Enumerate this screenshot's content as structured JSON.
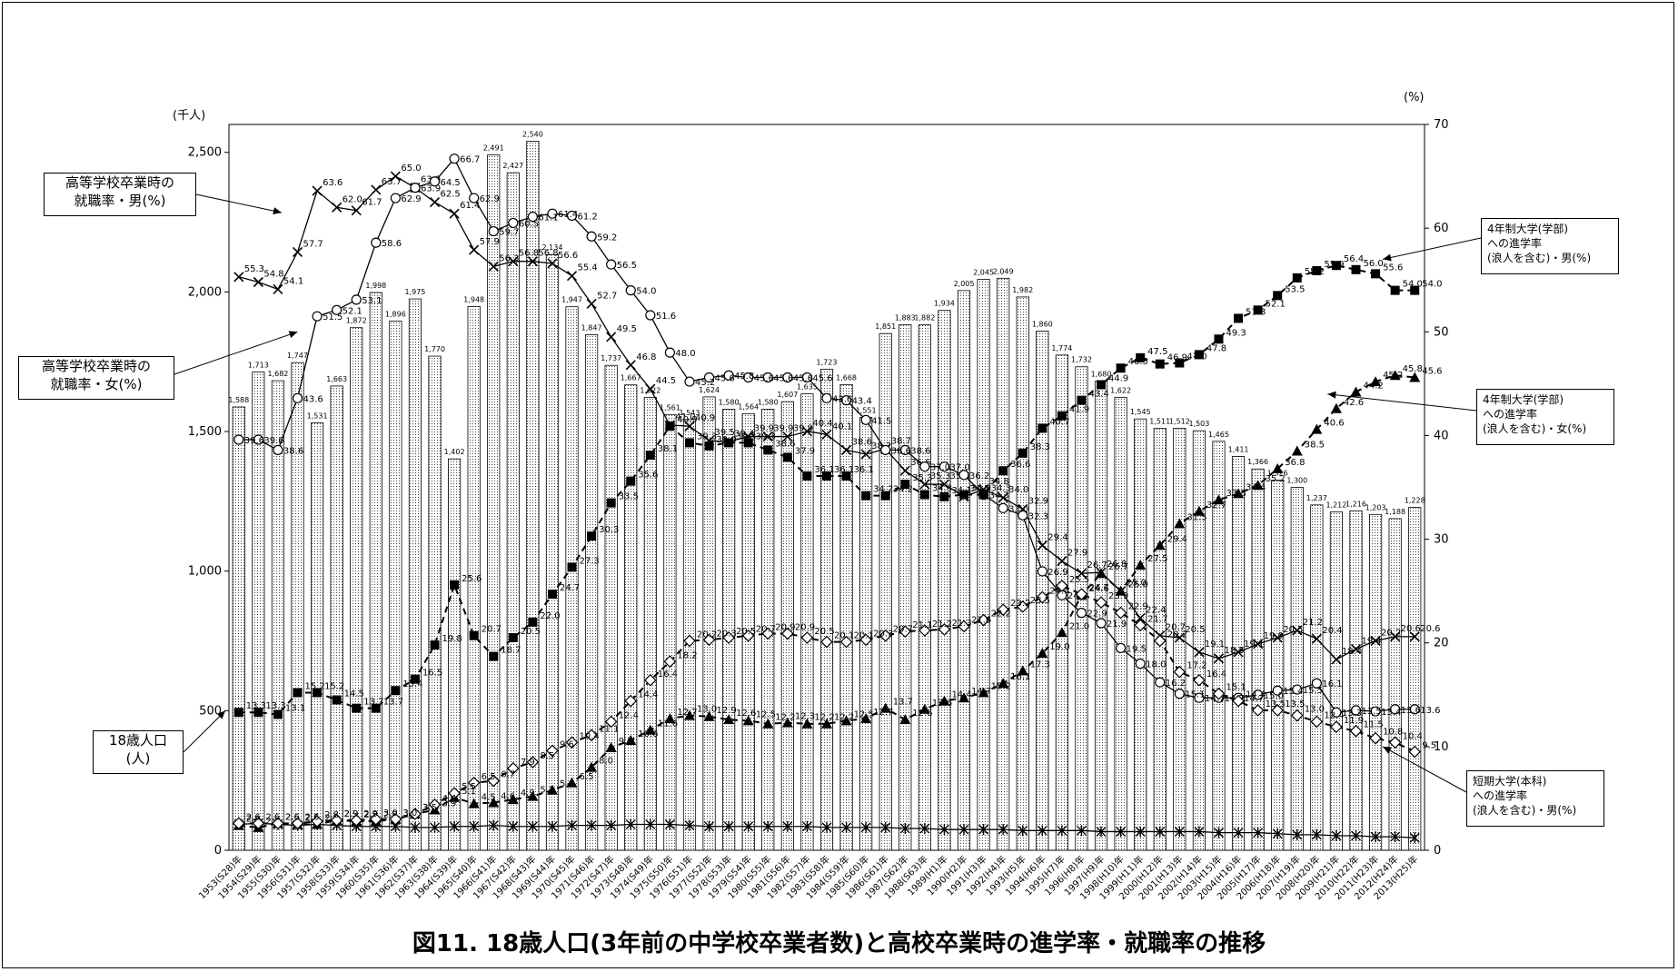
{
  "figure_title": "図11. 18歳人口(3年前の中学校卒業者数)と高校卒業時の進学率・就職率の推移",
  "chart_data": {
    "type": "bar",
    "title": "図11. 18歳人口(3年前の中学校卒業者数)と高校卒業時の進学率・就職率の推移",
    "left_axis": {
      "unit": "(千人)",
      "ylim": [
        0,
        2600
      ],
      "ticks": [
        "0",
        "500",
        "1,000",
        "1,500",
        "2,000",
        "2,500"
      ],
      "tick_values": [
        0,
        500,
        1000,
        1500,
        2000,
        2500
      ]
    },
    "right_axis": {
      "unit": "(%)",
      "ylim": [
        0,
        70
      ],
      "ticks": [
        "0",
        "10",
        "20",
        "30",
        "40",
        "50",
        "60",
        "70"
      ],
      "tick_values": [
        0,
        10,
        20,
        30,
        40,
        50,
        60,
        70
      ]
    },
    "categories": [
      "1953(S28)年",
      "1954(S29)年",
      "1955(S30)年",
      "1956(S31)年",
      "1957(S32)年",
      "1958(S33)年",
      "1959(S34)年",
      "1960(S35)年",
      "1961(S36)年",
      "1962(S37)年",
      "1963(S38)年",
      "1964(S39)年",
      "1965(S40)年",
      "1966(S41)年",
      "1967(S42)年",
      "1968(S43)年",
      "1969(S44)年",
      "1970(S45)年",
      "1971(S46)年",
      "1972(S47)年",
      "1973(S48)年",
      "1974(S49)年",
      "1975(S50)年",
      "1976(S51)年",
      "1977(S52)年",
      "1978(S53)年",
      "1979(S54)年",
      "1980(S55)年",
      "1981(S56)年",
      "1982(S57)年",
      "1983(S58)年",
      "1984(S59)年",
      "1985(S60)年",
      "1986(S61)年",
      "1987(S62)年",
      "1988(S63)年",
      "1989(H1)年",
      "1990(H2)年",
      "1991(H3)年",
      "1992(H4)年",
      "1993(H5)年",
      "1994(H6)年",
      "1995(H7)年",
      "1996(H8)年",
      "1997(H9)年",
      "1998(H10)年",
      "1999(H11)年",
      "2000(H12)年",
      "2001(H13)年",
      "2002(H14)年",
      "2003(H15)年",
      "2004(H16)年",
      "2005(H17)年",
      "2006(H18)年",
      "2007(H19)年",
      "2008(H20)年",
      "2009(H21)年",
      "2010(H22)年",
      "2011(H23)年",
      "2012(H24)年",
      "2013(H25)年"
    ],
    "population": {
      "name": "18歳人口(人)",
      "values": [
        1588,
        1713,
        1682,
        1747,
        1531,
        1663,
        1872,
        1998,
        1896,
        1975,
        1770,
        1402,
        1948,
        2491,
        2427,
        2540,
        2134,
        1947,
        1847,
        1737,
        1667,
        1622,
        1561,
        1543,
        1624,
        1580,
        1564,
        1580,
        1607,
        1635,
        1723,
        1668,
        1551,
        1851,
        1883,
        1882,
        1934,
        2005,
        2045,
        2049,
        1982,
        1860,
        1774,
        1732,
        1680,
        1622,
        1545,
        1511,
        1512,
        1503,
        1465,
        1411,
        1366,
        1326,
        1300,
        1237,
        1212,
        1216,
        1203,
        1188,
        1228
      ],
      "labels": [
        "1,588",
        "1,713",
        "1,682",
        "1,747",
        "1,531",
        "1,663",
        "1,872",
        "1,998",
        "1,896",
        "1,975",
        "1,770",
        "1,402",
        "1,948",
        "2,491",
        "2,427",
        "2,540",
        "2,134",
        "1,947",
        "1,847",
        "1,737",
        "1,667",
        "1,622",
        "1,561",
        "1,543",
        "1,624",
        "1,580",
        "1,564",
        "1,580",
        "1,607",
        "1,635",
        "1,723",
        "1,668",
        "1,551",
        "1,851",
        "1,883",
        "1,882",
        "1,934",
        "2,005",
        "2,045",
        "2,049",
        "1,982",
        "1,860",
        "1,774",
        "1,732",
        "1,680",
        "1,622",
        "1,545",
        "1,511",
        "1,512",
        "1,503",
        "1,465",
        "1,411",
        "1,366",
        "1,326",
        "1,300",
        "1,237",
        "1,212",
        "1,216",
        "1,203",
        "1,188",
        "1,228"
      ]
    },
    "series": [
      {
        "name": "高等学校卒業時の就職率・男(%)",
        "marker": "x",
        "dash": false,
        "values": [
          55.3,
          54.8,
          54.1,
          57.7,
          63.6,
          62.0,
          61.7,
          63.7,
          65.0,
          63.9,
          62.5,
          61.4,
          57.9,
          56.3,
          56.8,
          56.8,
          56.6,
          55.4,
          52.7,
          49.5,
          46.8,
          44.5,
          41.0,
          40.9,
          39.5,
          39.4,
          39.9,
          39.9,
          39.9,
          40.4,
          40.1,
          38.6,
          38.2,
          38.7,
          36.6,
          35.3,
          35.3,
          34.1,
          34.8,
          34.0,
          32.9,
          29.4,
          27.9,
          26.7,
          26.8,
          25.0,
          22.4,
          20.7,
          20.5,
          19.1,
          18.5,
          19.1,
          19.9,
          20.5,
          21.2,
          20.4,
          18.4,
          19.4,
          20.2,
          20.6,
          20.6
        ]
      },
      {
        "name": "高等学校卒業時の就職率・女(%)",
        "marker": "circle",
        "dash": false,
        "values": [
          39.6,
          39.6,
          38.6,
          43.6,
          51.5,
          52.1,
          53.1,
          58.6,
          62.9,
          63.9,
          64.5,
          66.7,
          62.9,
          59.7,
          60.5,
          61.1,
          61.4,
          61.2,
          59.2,
          56.5,
          54.0,
          51.6,
          48.0,
          45.2,
          45.6,
          45.8,
          45.6,
          45.6,
          45.6,
          45.6,
          43.6,
          43.4,
          41.5,
          38.6,
          38.6,
          37.0,
          37.0,
          36.2,
          34.3,
          33.0,
          32.3,
          26.9,
          24.6,
          22.9,
          21.9,
          19.5,
          18.0,
          16.2,
          15.1,
          14.7,
          14.7,
          14.7,
          15.0,
          15.4,
          15.5,
          16.1,
          13.3,
          13.5,
          13.4,
          13.6,
          13.6
        ]
      },
      {
        "name": "4年制大学(学部)への進学率(浪人を含む)・男(%)",
        "marker": "square",
        "dash": true,
        "values": [
          13.3,
          13.3,
          13.1,
          15.2,
          15.2,
          14.5,
          13.7,
          13.7,
          15.4,
          16.5,
          19.8,
          25.6,
          20.7,
          18.7,
          20.5,
          22.0,
          24.7,
          27.3,
          30.3,
          33.5,
          35.6,
          38.1,
          40.9,
          39.3,
          39.0,
          39.3,
          39.3,
          38.6,
          37.9,
          36.1,
          36.1,
          36.1,
          34.2,
          34.2,
          35.3,
          34.3,
          34.1,
          34.3,
          34.3,
          36.6,
          38.3,
          40.7,
          41.9,
          43.4,
          44.9,
          46.5,
          47.5,
          46.9,
          47.0,
          47.8,
          49.3,
          51.3,
          52.1,
          53.5,
          55.2,
          55.9,
          56.4,
          56.0,
          55.6,
          54.0,
          54.0
        ]
      },
      {
        "name": "4年制大学(学部)への進学率(浪人を含む)・女(%)",
        "marker": "triangle",
        "dash": true,
        "values": [
          2.4,
          2.2,
          2.6,
          2.5,
          2.5,
          2.9,
          2.8,
          2.8,
          3.0,
          3.5,
          3.9,
          5.1,
          4.5,
          4.6,
          4.9,
          5.2,
          5.8,
          6.5,
          8.0,
          9.9,
          10.6,
          11.6,
          12.7,
          13.0,
          12.9,
          12.6,
          12.5,
          12.2,
          12.3,
          12.2,
          12.2,
          12.5,
          12.7,
          13.7,
          12.6,
          13.6,
          14.4,
          14.7,
          15.2,
          16.1,
          17.3,
          19.0,
          21.0,
          24.6,
          26.7,
          25.0,
          27.5,
          29.4,
          31.5,
          32.7,
          33.8,
          34.4,
          35.2,
          36.8,
          38.5,
          40.6,
          42.6,
          44.2,
          45.2,
          45.8,
          45.6
        ]
      },
      {
        "name": "短期大学(本科)への進学率(浪人を含む)・男(%)",
        "marker": "asterisk",
        "dash": false,
        "values": [
          2.5,
          2.6,
          2.5,
          2.4,
          2.5,
          2.4,
          2.3,
          2.3,
          2.3,
          2.2,
          2.2,
          2.3,
          2.3,
          2.4,
          2.3,
          2.3,
          2.3,
          2.4,
          2.4,
          2.4,
          2.5,
          2.5,
          2.5,
          2.4,
          2.3,
          2.3,
          2.3,
          2.3,
          2.3,
          2.3,
          2.2,
          2.2,
          2.2,
          2.2,
          2.1,
          2.1,
          2.0,
          2.0,
          2.0,
          2.0,
          1.9,
          1.9,
          1.9,
          1.9,
          1.8,
          1.8,
          1.8,
          1.8,
          1.8,
          1.8,
          1.7,
          1.7,
          1.7,
          1.6,
          1.5,
          1.5,
          1.4,
          1.4,
          1.3,
          1.3,
          1.2
        ]
      },
      {
        "name": "短期大学(本科)への進学率(浪人を含む)・女(%)",
        "marker": "diamond",
        "dash": true,
        "values": [
          2.6,
          2.6,
          2.6,
          2.6,
          2.8,
          2.9,
          2.9,
          3.0,
          3.0,
          3.5,
          4.4,
          5.5,
          6.5,
          6.7,
          7.9,
          8.5,
          9.6,
          10.4,
          11.1,
          12.4,
          14.4,
          16.4,
          18.2,
          20.2,
          20.3,
          20.5,
          20.7,
          20.9,
          20.9,
          20.5,
          20.1,
          20.1,
          20.3,
          20.7,
          21.1,
          21.2,
          21.3,
          21.6,
          22.2,
          23.2,
          23.5,
          24.4,
          25.5,
          24.7,
          23.9,
          22.9,
          21.7,
          20.2,
          17.2,
          16.4,
          15.1,
          14.4,
          13.5,
          13.5,
          13.0,
          12.4,
          11.9,
          11.5,
          10.8,
          10.4,
          9.5
        ]
      }
    ],
    "point_labels": {
      "male_employment": [
        "55.3",
        "54.8",
        "54.1",
        "57.7",
        "63.6",
        "62.0",
        "61.7",
        "63.7",
        "65.0",
        "63.9",
        "62.5",
        "61.4",
        "57.9",
        "56.3",
        "56.8",
        "56.8",
        "56.6",
        "55.4",
        "52.7",
        "49.5",
        "46.8",
        "44.5",
        "41.0",
        "40.9",
        "39.5",
        "39.4",
        "39.9",
        "39.9",
        "39.9",
        "40.4",
        "40.1",
        "38.6",
        "38.2",
        "38.7",
        "36.6",
        "35.3",
        "35.3",
        "34.1",
        "34.8",
        "34.0",
        "32.9",
        "29.4",
        "27.9",
        "26.7",
        "26.8",
        "25.0",
        "22.4",
        "20.7",
        "20.5",
        "19.1",
        "18.5",
        "19.1",
        "19.9",
        "20.5",
        "21.2",
        "20.4",
        "18.4",
        "19.4",
        "20.2",
        "20.6",
        "20.6"
      ],
      "female_employment": [
        "39.6",
        "39.6",
        "38.6",
        "43.6",
        "51.5",
        "52.1",
        "53.1",
        "58.6",
        "62.9",
        "63.9",
        "64.5",
        "66.7",
        "62.9",
        "59.7",
        "60.5",
        "61.1",
        "61.4",
        "61.2",
        "59.2",
        "56.5",
        "54.0",
        "51.6",
        "48.0",
        "45.2",
        "45.6",
        "45.8",
        "45.6",
        "45.6",
        "45.6",
        "45.6",
        "43.6",
        "43.4",
        "41.5",
        "38.6",
        "38.6",
        "37.0",
        "37.0",
        "36.2",
        "34.3",
        "33.0",
        "32.3",
        "26.9",
        "24.6",
        "22.9",
        "21.9",
        "19.5",
        "18.0",
        "16.2",
        "15.1",
        "14.7",
        "14.7",
        "14.7",
        "15.0",
        "15.4",
        "15.5",
        "16.1",
        "13.3",
        "13.5",
        "13.4",
        "13.6",
        "13.6"
      ],
      "male_univ": [
        "13.3",
        "13.3",
        "13.1",
        "15.2",
        "15.2",
        "14.5",
        "13.7",
        "13.7",
        "15.4",
        "16.5",
        "19.8",
        "25.6",
        "20.7",
        "18.7",
        "20.5",
        "22.0",
        "24.7",
        "27.3",
        "30.3",
        "33.5",
        "35.6",
        "38.1",
        "40.9",
        "39.3",
        "39.0",
        "39.3",
        "39.3",
        "38.6",
        "37.9",
        "36.1",
        "36.1",
        "36.1",
        "34.2",
        "34.2",
        "35.3",
        "34.3",
        "34.1",
        "34.3",
        "34.3",
        "36.6",
        "38.3",
        "40.7",
        "41.9",
        "43.4",
        "44.9",
        "46.5",
        "47.5",
        "46.9",
        "47.0",
        "47.8",
        "49.3",
        "51.3",
        "52.1",
        "53.5",
        "55.2",
        "55.9",
        "56.4",
        "56.0",
        "55.6",
        "54.0",
        "54.0"
      ],
      "female_univ": [
        "2.4",
        "2.2",
        "2.6",
        "2.5",
        "2.5",
        "2.9",
        "2.8",
        "2.8",
        "3.0",
        "3.5",
        "3.9",
        "5.1",
        "4.5",
        "4.6",
        "4.9",
        "5.2",
        "5.8",
        "6.5",
        "8.0",
        "9.9",
        "10.6",
        "11.6",
        "12.7",
        "13.0",
        "12.9",
        "12.6",
        "12.5",
        "12.2",
        "12.3",
        "12.2",
        "12.2",
        "12.5",
        "12.7",
        "13.7",
        "12.6",
        "13.6",
        "14.4",
        "14.7",
        "15.2",
        "16.1",
        "17.3",
        "19.0",
        "21.0",
        "24.6",
        "26.7",
        "25.0",
        "27.5",
        "29.4",
        "31.5",
        "32.7",
        "33.8",
        "34.4",
        "35.2",
        "36.8",
        "38.5",
        "40.6",
        "42.6",
        "44.2",
        "45.2",
        "45.8",
        "45.6"
      ],
      "female_jc": [
        "2.6",
        "2.6",
        "2.6",
        "2.6",
        "2.8",
        "2.9",
        "2.9",
        "3.0",
        "3.0",
        "3.5",
        "4.4",
        "5.5",
        "6.5",
        "6.7",
        "7.9",
        "8.5",
        "9.6",
        "10.4",
        "11.1",
        "12.4",
        "14.4",
        "16.4",
        "18.2",
        "20.2",
        "20.3",
        "20.5",
        "20.7",
        "20.9",
        "20.9",
        "20.5",
        "20.1",
        "20.1",
        "20.3",
        "20.7",
        "21.1",
        "21.2",
        "21.3",
        "21.6",
        "22.2",
        "23.2",
        "23.5",
        "24.4",
        "25.5",
        "24.7",
        "23.9",
        "22.9",
        "21.7",
        "20.2",
        "17.2",
        "16.4",
        "15.1",
        "14.4",
        "13.5",
        "13.5",
        "13.0",
        "12.4",
        "11.9",
        "11.5",
        "10.8",
        "10.4",
        "9.5"
      ]
    }
  },
  "annotations": {
    "male_employment": "高等学校卒業時の\n就職率・男(%)",
    "female_employment": "高等学校卒業時の\n就職率・女(%)",
    "population": "18歳人口\n(人)",
    "male_univ": "4年制大学(学部)\nへの進学率\n(浪人を含む)・男(%)",
    "female_univ": "4年制大学(学部)\nへの進学率\n(浪人を含む)・女(%)",
    "male_jc": "短期大学(本科)\nへの進学率\n(浪人を含む)・男(%)"
  }
}
